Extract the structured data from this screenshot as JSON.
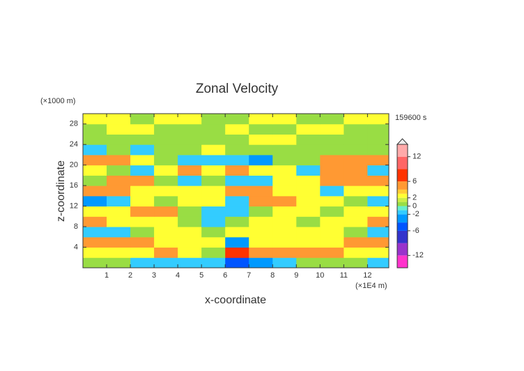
{
  "chart_data": {
    "type": "contour",
    "title": "Zonal Velocity",
    "x_label": "x-coordinate",
    "y_label": "z-coordinate",
    "x_unit": "(×1E4 m)",
    "y_unit": "(×1000 m)",
    "time_label": "159600 s",
    "xlim": [
      0,
      12.9
    ],
    "ylim": [
      0,
      30
    ],
    "xticks": [
      1,
      2,
      3,
      4,
      5,
      6,
      7,
      8,
      9,
      10,
      11,
      12
    ],
    "yticks": [
      4,
      8,
      12,
      16,
      20,
      24,
      28
    ],
    "x": [
      0.5,
      1.5,
      2.5,
      3.5,
      4.5,
      5.5,
      6.5,
      7.5,
      8.5,
      9.5,
      10.5,
      11.5,
      12.5
    ],
    "y": [
      1,
      3,
      5,
      7,
      9,
      11,
      13,
      15,
      17,
      19,
      21,
      23,
      25,
      27,
      29
    ],
    "z": [
      [
        0.5,
        0.5,
        -1.5,
        -1.5,
        -1.5,
        -1.5,
        -5,
        -3,
        -1.5,
        0.5,
        0.5,
        0.5,
        -1.5
      ],
      [
        2.5,
        2.5,
        2.5,
        4.5,
        2.5,
        0.5,
        7,
        4.5,
        4.5,
        4.5,
        4.5,
        2.5,
        2.5
      ],
      [
        4.5,
        4.5,
        4.5,
        2.5,
        2.5,
        2.5,
        -3,
        2.5,
        2.5,
        2.5,
        2.5,
        4.5,
        4.5
      ],
      [
        -1.5,
        -1.5,
        0.5,
        2.5,
        2.5,
        0.5,
        2.5,
        2.5,
        2.5,
        2.5,
        2.5,
        0.5,
        -1.5
      ],
      [
        4.5,
        2.5,
        2.5,
        2.5,
        0.5,
        -1.5,
        0.5,
        2.5,
        2.5,
        0.5,
        2.5,
        2.5,
        4.5
      ],
      [
        2.5,
        2.5,
        4.5,
        4.5,
        0.5,
        -1.5,
        -1.5,
        0.5,
        2.5,
        2.5,
        0.5,
        2.5,
        2.5
      ],
      [
        -3,
        -1.5,
        2.5,
        0.5,
        2.5,
        2.5,
        -1.5,
        4.5,
        4.5,
        2.5,
        2.5,
        0.5,
        -1.5
      ],
      [
        4.5,
        4.5,
        2.5,
        2.5,
        2.5,
        2.5,
        4.5,
        4.5,
        2.5,
        2.5,
        -1.5,
        2.5,
        2.5
      ],
      [
        0.5,
        4.5,
        4.5,
        0.5,
        -1.5,
        0.5,
        -1.5,
        -1.5,
        2.5,
        2.5,
        4.5,
        4.5,
        4.5
      ],
      [
        2.5,
        0.5,
        -1.5,
        2.5,
        4.5,
        2.5,
        4.5,
        2.5,
        2.5,
        -1.5,
        4.5,
        4.5,
        -1.5
      ],
      [
        4.5,
        4.5,
        2.5,
        0.5,
        -1.5,
        -1.5,
        -1.5,
        -3,
        0.5,
        0.5,
        4.5,
        4.5,
        4.5
      ],
      [
        -1.5,
        0.5,
        -1.5,
        0.5,
        0.5,
        2.5,
        0.5,
        0.5,
        0.5,
        0.5,
        0.5,
        0.5,
        0.5
      ],
      [
        0.5,
        0.5,
        0.5,
        0.5,
        0.5,
        0.5,
        0.5,
        2.5,
        2.5,
        0.5,
        0.5,
        0.5,
        0.5
      ],
      [
        0.5,
        2.5,
        2.5,
        0.5,
        0.5,
        0.5,
        2.5,
        0.5,
        0.5,
        2.5,
        2.5,
        0.5,
        0.5
      ],
      [
        2.5,
        2.5,
        0.5,
        2.5,
        2.5,
        0.5,
        0.5,
        2.5,
        2.5,
        0.5,
        0.5,
        2.5,
        2.5
      ]
    ],
    "colorbar": {
      "clim": [
        -15,
        15
      ],
      "levels": [
        -15,
        -12,
        -9,
        -6,
        -4,
        -2,
        -1,
        0,
        1,
        2,
        3,
        4,
        6,
        9,
        12,
        15
      ],
      "colors": [
        "#ff33cc",
        "#9933cc",
        "#3333cc",
        "#0055ff",
        "#0099ff",
        "#33ccff",
        "#66eecc",
        "#99dd44",
        "#ccee44",
        "#ffff33",
        "#ffcc33",
        "#ff9933",
        "#ff3300",
        "#ff6666",
        "#ffaaaa"
      ],
      "ticks": [
        12,
        6,
        2,
        0,
        -2,
        -6,
        -12
      ]
    }
  }
}
